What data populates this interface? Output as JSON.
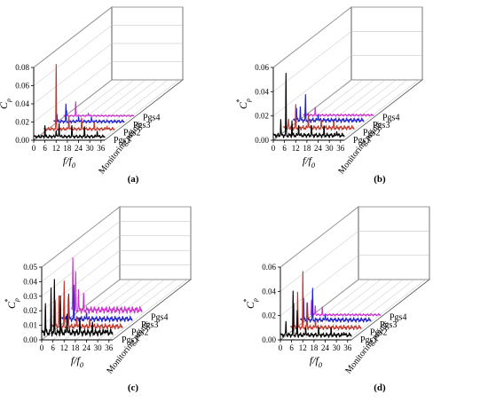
{
  "colors": {
    "Pgs1": "#000000",
    "Pgs2": "#c0392b",
    "Pgs3": "#2222cc",
    "Pgs4": "#cc33cc",
    "frame": "#555555",
    "grid": "#bbbbbb"
  },
  "chart_data": [
    {
      "type": "line",
      "panel_label": "(a)",
      "ylabel": "C_p^*",
      "xlabel": "f/f_0",
      "zlabel": "Monitoring points",
      "ylim": [
        0,
        0.08
      ],
      "yticks": [
        0.0,
        0.02,
        0.04,
        0.06,
        0.08
      ],
      "ytick_labels": [
        "0.00",
        "0.02",
        "0.04",
        "0.06",
        "0.08"
      ],
      "xlim": [
        0,
        38
      ],
      "xticks": [
        0,
        6,
        12,
        18,
        24,
        30,
        36
      ],
      "xtick_labels": [
        "0",
        "6",
        "12",
        "18",
        "24",
        "30",
        "36"
      ],
      "grid": true,
      "series": [
        {
          "name": "Pgs1",
          "peaks": [
            [
              6,
              0.012
            ],
            [
              12,
              0.008
            ],
            [
              13.6,
              0.016
            ],
            [
              20.4,
              0.012
            ],
            [
              27.2,
              0.01
            ],
            [
              34,
              0.008
            ]
          ],
          "base": 0.004
        },
        {
          "name": "Pgs2",
          "peaks": [
            [
              6.8,
              0.07
            ],
            [
              13.6,
              0.016
            ],
            [
              20.4,
              0.012
            ],
            [
              27.2,
              0.006
            ],
            [
              34,
              0.004
            ]
          ],
          "base": 0.004
        },
        {
          "name": "Pgs3",
          "peaks": [
            [
              2,
              0.008
            ],
            [
              6.8,
              0.018
            ],
            [
              13.6,
              0.007
            ],
            [
              20.4,
              0.004
            ]
          ],
          "base": 0.004
        },
        {
          "name": "Pgs4",
          "peaks": [
            [
              2,
              0.006
            ],
            [
              6.8,
              0.015
            ],
            [
              13.6,
              0.004
            ]
          ],
          "base": 0.002
        }
      ]
    },
    {
      "type": "line",
      "panel_label": "(b)",
      "ylabel": "C_p^*",
      "xlabel": "f/f_0",
      "zlabel": "Monitoring points",
      "ylim": [
        0,
        0.06
      ],
      "yticks": [
        0.0,
        0.02,
        0.04,
        0.06
      ],
      "ytick_labels": [
        "0.00",
        "0.02",
        "0.04",
        "0.06"
      ],
      "xlim": [
        0,
        38
      ],
      "xticks": [
        0,
        6,
        12,
        18,
        24,
        30,
        36
      ],
      "xtick_labels": [
        "0",
        "6",
        "12",
        "18",
        "24",
        "30",
        "36"
      ],
      "grid": true,
      "series": [
        {
          "name": "Pgs1",
          "peaks": [
            [
              4,
              0.014
            ],
            [
              6.8,
              0.05
            ],
            [
              10,
              0.012
            ],
            [
              13.6,
              0.01
            ],
            [
              20.4,
              0.008
            ],
            [
              27.2,
              0.007
            ],
            [
              34,
              0.005
            ]
          ],
          "base": 0.004
        },
        {
          "name": "Pgs2",
          "peaks": [
            [
              3,
              0.008
            ],
            [
              6.8,
              0.018
            ],
            [
              13.6,
              0.014
            ],
            [
              20.4,
              0.006
            ],
            [
              27.2,
              0.004
            ]
          ],
          "base": 0.004
        },
        {
          "name": "Pgs3",
          "peaks": [
            [
              2,
              0.01
            ],
            [
              4,
              0.012
            ],
            [
              6.8,
              0.02
            ],
            [
              13.6,
              0.006
            ]
          ],
          "base": 0.004
        },
        {
          "name": "Pgs4",
          "peaks": [
            [
              1.5,
              0.01
            ],
            [
              6.8,
              0.006
            ]
          ],
          "base": 0.002
        }
      ]
    },
    {
      "type": "line",
      "panel_label": "(c)",
      "ylabel": "C_p^*",
      "xlabel": "f/f_0",
      "zlabel": "Monitoring points",
      "ylim": [
        0,
        0.05
      ],
      "yticks": [
        0.0,
        0.01,
        0.02,
        0.03,
        0.04,
        0.05
      ],
      "ytick_labels": [
        "0.00",
        "0.01",
        "0.02",
        "0.03",
        "0.04",
        "0.05"
      ],
      "xlim": [
        0,
        38
      ],
      "xticks": [
        0,
        6,
        12,
        18,
        24,
        30,
        36
      ],
      "xtick_labels": [
        "0",
        "6",
        "12",
        "18",
        "24",
        "30",
        "36"
      ],
      "grid": true,
      "series": [
        {
          "name": "Pgs1",
          "peaks": [
            [
              2,
              0.02
            ],
            [
              5,
              0.03
            ],
            [
              6.8,
              0.035
            ],
            [
              10,
              0.025
            ],
            [
              13.6,
              0.015
            ],
            [
              20.4,
              0.01
            ],
            [
              27.2,
              0.006
            ],
            [
              34,
              0.004
            ]
          ],
          "base": 0.005
        },
        {
          "name": "Pgs2",
          "peaks": [
            [
              2,
              0.018
            ],
            [
              4,
              0.022
            ],
            [
              6.8,
              0.03
            ],
            [
              9,
              0.02
            ],
            [
              13.6,
              0.008
            ],
            [
              20.4,
              0.005
            ]
          ],
          "base": 0.004
        },
        {
          "name": "Pgs3",
          "peaks": [
            [
              1.5,
              0.02
            ],
            [
              4,
              0.018
            ],
            [
              6.8,
              0.022
            ],
            [
              13.6,
              0.006
            ]
          ],
          "base": 0.004
        },
        {
          "name": "Pgs4",
          "peaks": [
            [
              1,
              0.035
            ],
            [
              2.5,
              0.025
            ],
            [
              4,
              0.015
            ],
            [
              6.8,
              0.01
            ]
          ],
          "base": 0.005
        }
      ]
    },
    {
      "type": "line",
      "panel_label": "(d)",
      "ylabel": "C_p^*",
      "xlabel": "f/f_0",
      "zlabel": "Monitoring points",
      "ylim": [
        0,
        0.06
      ],
      "yticks": [
        0.0,
        0.02,
        0.04,
        0.06
      ],
      "ytick_labels": [
        "0.00",
        "0.02",
        "0.04",
        "0.06"
      ],
      "xlim": [
        0,
        38
      ],
      "xticks": [
        0,
        6,
        12,
        18,
        24,
        30,
        36
      ],
      "xtick_labels": [
        "0",
        "6",
        "12",
        "18",
        "24",
        "30",
        "36"
      ],
      "grid": true,
      "series": [
        {
          "name": "Pgs1",
          "peaks": [
            [
              3,
              0.012
            ],
            [
              6.8,
              0.035
            ],
            [
              9,
              0.02
            ],
            [
              13.6,
              0.008
            ],
            [
              20.4,
              0.006
            ],
            [
              27.2,
              0.005
            ],
            [
              34,
              0.004
            ]
          ],
          "base": 0.004
        },
        {
          "name": "Pgs2",
          "peaks": [
            [
              2,
              0.02
            ],
            [
              4,
              0.03
            ],
            [
              6.8,
              0.045
            ],
            [
              9,
              0.02
            ],
            [
              13.6,
              0.008
            ]
          ],
          "base": 0.004
        },
        {
          "name": "Pgs3",
          "peaks": [
            [
              2,
              0.018
            ],
            [
              4,
              0.015
            ],
            [
              6.8,
              0.025
            ],
            [
              13.6,
              0.006
            ]
          ],
          "base": 0.004
        },
        {
          "name": "Pgs4",
          "peaks": [
            [
              1,
              0.012
            ],
            [
              3,
              0.008
            ],
            [
              6.8,
              0.006
            ]
          ],
          "base": 0.002
        }
      ]
    }
  ]
}
